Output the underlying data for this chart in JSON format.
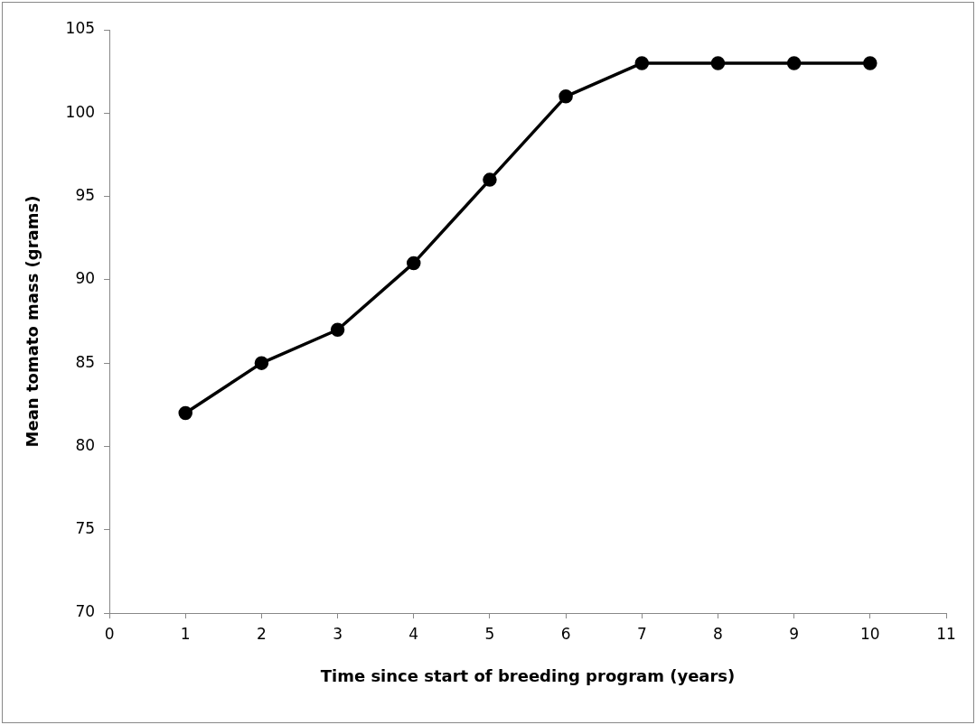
{
  "chart_data": {
    "type": "line",
    "xlabel": "Time since start of breeding program (years)",
    "ylabel": "Mean tomato mass (grams)",
    "x": [
      1,
      2,
      3,
      4,
      5,
      6,
      7,
      8,
      9,
      10
    ],
    "series": [
      {
        "color": "#000000",
        "values": [
          82,
          85,
          87,
          91,
          96,
          101,
          103,
          103,
          103,
          103
        ]
      }
    ],
    "xlim": [
      0,
      11
    ],
    "xticks": [
      0,
      1,
      2,
      3,
      4,
      5,
      6,
      7,
      8,
      9,
      10,
      11
    ],
    "ylim": [
      70,
      105
    ],
    "yticks": [
      70,
      75,
      80,
      85,
      90,
      95,
      100,
      105
    ],
    "grid": false,
    "legend": false,
    "marker": "circle",
    "line_style": "solid"
  }
}
